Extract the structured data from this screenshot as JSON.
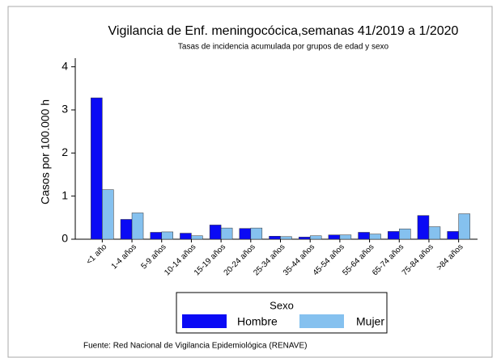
{
  "chart_data": {
    "type": "bar",
    "title": "Vigilancia de Enf. meningocócica,semanas 41/2019 a 1/2020",
    "subtitle": "Tasas de incidencia acumulada por grupos de edad y sexo",
    "y_label": "Casos por 100.000 h",
    "categories": [
      "<1 año",
      "1-4 años",
      "5-9 años",
      "10-14 años",
      "15-19 años",
      "20-24 años",
      "25-34 años",
      "35-44 años",
      "45-54 años",
      "55-64 años",
      "65-74 años",
      "75-84 años",
      ">84 años"
    ],
    "series": [
      {
        "name": "Hombre",
        "color": "#0a0af5",
        "values": [
          3.28,
          0.46,
          0.16,
          0.14,
          0.33,
          0.25,
          0.07,
          0.05,
          0.1,
          0.16,
          0.18,
          0.55,
          0.18
        ]
      },
      {
        "name": "Mujer",
        "color": "#85c1ef",
        "values": [
          1.15,
          0.61,
          0.17,
          0.08,
          0.26,
          0.26,
          0.06,
          0.08,
          0.1,
          0.12,
          0.24,
          0.29,
          0.59
        ]
      }
    ],
    "legend_title": "Sexo",
    "ylim": [
      0,
      4.2
    ],
    "yticks": [
      0,
      1,
      2,
      3,
      4
    ],
    "source": "Fuente: Red Nacional de Vigilancia Epidemiológica (RENAVE)"
  }
}
